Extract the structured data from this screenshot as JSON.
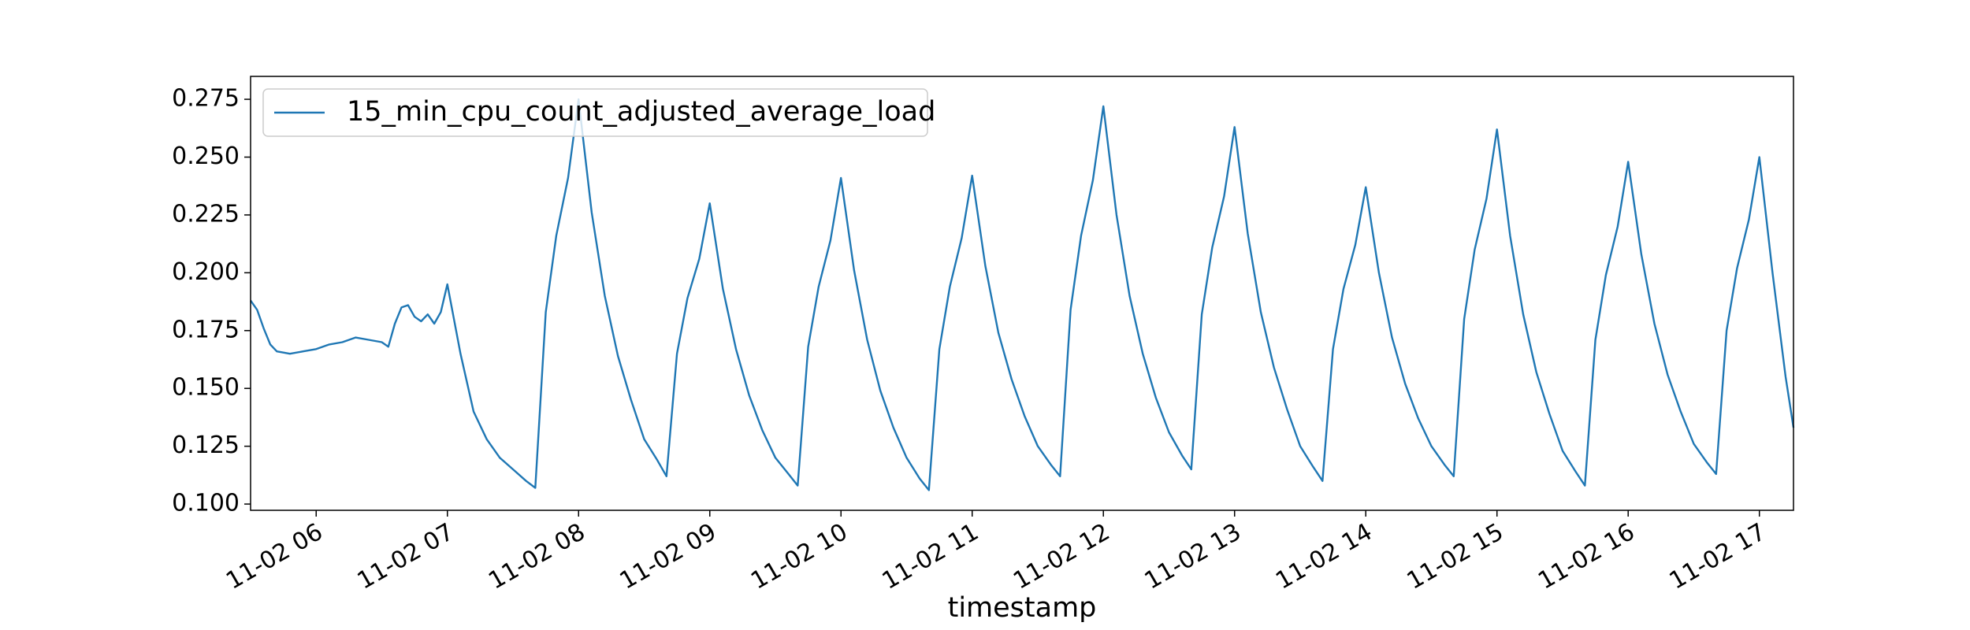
{
  "chart_data": {
    "type": "line",
    "xlabel": "timestamp",
    "legend": "upper left",
    "x": [
      5.5,
      5.55,
      5.6,
      5.65,
      5.7,
      5.8,
      5.9,
      6.0,
      6.1,
      6.2,
      6.3,
      6.4,
      6.5,
      6.55,
      6.6,
      6.65,
      6.7,
      6.75,
      6.8,
      6.85,
      6.9,
      6.95,
      7.0,
      7.1,
      7.2,
      7.3,
      7.4,
      7.5,
      7.6,
      7.67,
      7.75,
      7.83,
      7.92,
      8.0,
      8.1,
      8.2,
      8.3,
      8.4,
      8.5,
      8.6,
      8.67,
      8.75,
      8.83,
      8.92,
      9.0,
      9.1,
      9.2,
      9.3,
      9.4,
      9.5,
      9.6,
      9.67,
      9.75,
      9.83,
      9.92,
      10.0,
      10.1,
      10.2,
      10.3,
      10.4,
      10.5,
      10.6,
      10.67,
      10.75,
      10.83,
      10.92,
      11.0,
      11.1,
      11.2,
      11.3,
      11.4,
      11.5,
      11.6,
      11.67,
      11.75,
      11.83,
      11.92,
      12.0,
      12.1,
      12.2,
      12.3,
      12.4,
      12.5,
      12.6,
      12.67,
      12.75,
      12.83,
      12.92,
      13.0,
      13.1,
      13.2,
      13.3,
      13.4,
      13.5,
      13.6,
      13.67,
      13.75,
      13.83,
      13.92,
      14.0,
      14.1,
      14.2,
      14.3,
      14.4,
      14.5,
      14.6,
      14.67,
      14.75,
      14.83,
      14.92,
      15.0,
      15.1,
      15.2,
      15.3,
      15.4,
      15.5,
      15.6,
      15.67,
      15.75,
      15.83,
      15.92,
      16.0,
      16.1,
      16.2,
      16.3,
      16.4,
      16.5,
      16.6,
      16.67,
      16.75,
      16.83,
      16.92,
      17.0,
      17.1,
      17.2,
      17.26
    ],
    "series": [
      {
        "name": "15_min_cpu_count_adjusted_average_load",
        "color": "#1f77b4",
        "values": [
          0.188,
          0.184,
          0.176,
          0.169,
          0.166,
          0.165,
          0.166,
          0.167,
          0.169,
          0.17,
          0.172,
          0.171,
          0.17,
          0.168,
          0.178,
          0.185,
          0.186,
          0.181,
          0.179,
          0.182,
          0.178,
          0.183,
          0.195,
          0.165,
          0.14,
          0.128,
          0.12,
          0.115,
          0.11,
          0.107,
          0.183,
          0.216,
          0.241,
          0.275,
          0.226,
          0.19,
          0.164,
          0.145,
          0.128,
          0.119,
          0.112,
          0.165,
          0.189,
          0.206,
          0.23,
          0.193,
          0.167,
          0.147,
          0.132,
          0.12,
          0.113,
          0.108,
          0.168,
          0.194,
          0.214,
          0.241,
          0.201,
          0.171,
          0.149,
          0.133,
          0.12,
          0.111,
          0.106,
          0.167,
          0.194,
          0.215,
          0.242,
          0.203,
          0.174,
          0.154,
          0.138,
          0.125,
          0.117,
          0.112,
          0.184,
          0.216,
          0.24,
          0.272,
          0.225,
          0.19,
          0.165,
          0.146,
          0.131,
          0.121,
          0.115,
          0.182,
          0.211,
          0.233,
          0.263,
          0.217,
          0.183,
          0.159,
          0.141,
          0.125,
          0.116,
          0.11,
          0.167,
          0.193,
          0.212,
          0.237,
          0.2,
          0.172,
          0.152,
          0.137,
          0.125,
          0.117,
          0.112,
          0.18,
          0.21,
          0.232,
          0.262,
          0.216,
          0.182,
          0.157,
          0.139,
          0.123,
          0.114,
          0.108,
          0.171,
          0.199,
          0.22,
          0.248,
          0.208,
          0.178,
          0.156,
          0.14,
          0.126,
          0.118,
          0.113,
          0.175,
          0.202,
          0.223,
          0.25,
          0.2,
          0.155,
          0.133
        ]
      }
    ],
    "xlim": [
      5.5,
      17.26
    ],
    "ylim": [
      0.0973,
      0.2849
    ],
    "xticks": [
      {
        "value": 6,
        "label": "11-02 06"
      },
      {
        "value": 7,
        "label": "11-02 07"
      },
      {
        "value": 8,
        "label": "11-02 08"
      },
      {
        "value": 9,
        "label": "11-02 09"
      },
      {
        "value": 10,
        "label": "11-02 10"
      },
      {
        "value": 11,
        "label": "11-02 11"
      },
      {
        "value": 12,
        "label": "11-02 12"
      },
      {
        "value": 13,
        "label": "11-02 13"
      },
      {
        "value": 14,
        "label": "11-02 14"
      },
      {
        "value": 15,
        "label": "11-02 15"
      },
      {
        "value": 16,
        "label": "11-02 16"
      },
      {
        "value": 17,
        "label": "11-02 17"
      }
    ],
    "yticks": [
      {
        "value": 0.1,
        "label": "0.100"
      },
      {
        "value": 0.125,
        "label": "0.125"
      },
      {
        "value": 0.15,
        "label": "0.150"
      },
      {
        "value": 0.175,
        "label": "0.175"
      },
      {
        "value": 0.2,
        "label": "0.200"
      },
      {
        "value": 0.225,
        "label": "0.225"
      },
      {
        "value": 0.25,
        "label": "0.250"
      },
      {
        "value": 0.275,
        "label": "0.275"
      }
    ]
  }
}
